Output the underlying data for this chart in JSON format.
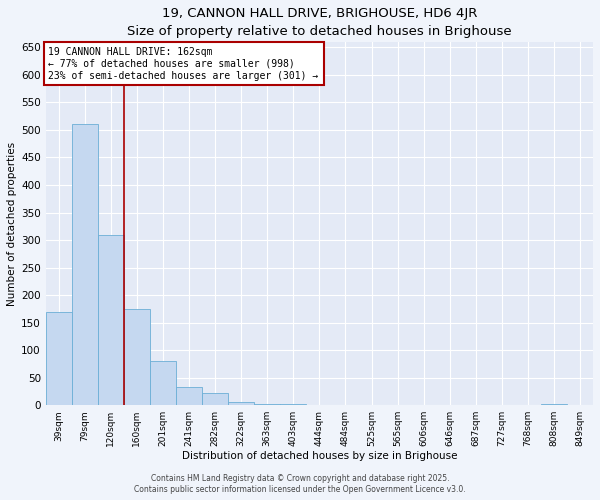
{
  "title": "19, CANNON HALL DRIVE, BRIGHOUSE, HD6 4JR",
  "subtitle": "Size of property relative to detached houses in Brighouse",
  "xlabel": "Distribution of detached houses by size in Brighouse",
  "ylabel": "Number of detached properties",
  "bar_labels": [
    "39sqm",
    "79sqm",
    "120sqm",
    "160sqm",
    "201sqm",
    "241sqm",
    "282sqm",
    "322sqm",
    "363sqm",
    "403sqm",
    "444sqm",
    "484sqm",
    "525sqm",
    "565sqm",
    "606sqm",
    "646sqm",
    "687sqm",
    "727sqm",
    "768sqm",
    "808sqm",
    "849sqm"
  ],
  "bar_values": [
    170,
    510,
    310,
    175,
    80,
    33,
    22,
    5,
    3,
    2,
    1,
    1,
    0,
    0,
    0,
    0,
    0,
    0,
    0,
    3,
    1
  ],
  "bar_color": "#c5d8f0",
  "bar_edgecolor": "#6baed6",
  "vline_x": 2.5,
  "vline_color": "#aa0000",
  "annotation_text": "19 CANNON HALL DRIVE: 162sqm\n← 77% of detached houses are smaller (998)\n23% of semi-detached houses are larger (301) →",
  "annotation_box_color": "#ffffff",
  "annotation_border_color": "#aa0000",
  "ylim": [
    0,
    660
  ],
  "yticks": [
    0,
    50,
    100,
    150,
    200,
    250,
    300,
    350,
    400,
    450,
    500,
    550,
    600,
    650
  ],
  "footer1": "Contains HM Land Registry data © Crown copyright and database right 2025.",
  "footer2": "Contains public sector information licensed under the Open Government Licence v3.0.",
  "background_color": "#f0f4fb",
  "plot_bg_color": "#e4eaf6"
}
